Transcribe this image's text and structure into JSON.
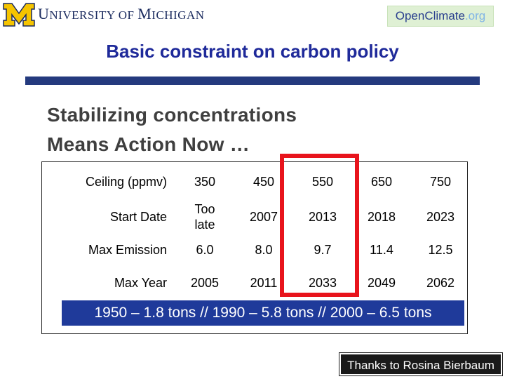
{
  "header": {
    "logo_letter": "M",
    "university": {
      "initial": "U",
      "rest": "NIVERSITY OF ",
      "m": "M",
      "tail": "ICHIGAN"
    },
    "partner": {
      "open": "Open",
      "climate": "Climate",
      "org": ".org"
    },
    "colors": {
      "maize": "#f5c400",
      "blue": "#1a2a5e"
    }
  },
  "slide": {
    "title": "Basic constraint on carbon policy",
    "subtitle_line1": "Stabilizing concentrations",
    "subtitle_line2": "Means Action Now …"
  },
  "table": {
    "header": {
      "label": "Ceiling (ppmv)",
      "values": [
        "350",
        "450",
        "550",
        "650",
        "750"
      ]
    },
    "rows": [
      {
        "label": "Start Date",
        "values": [
          "Too late",
          "2007",
          "2013",
          "2018",
          "2023"
        ]
      },
      {
        "label": "Max Emission",
        "values": [
          "6.0",
          "8.0",
          "9.7",
          "11.4",
          "12.5"
        ]
      },
      {
        "label": "Max Year",
        "values": [
          "2005",
          "2011",
          "2033",
          "2049",
          "2062"
        ]
      }
    ],
    "highlight_color": "#e8141c"
  },
  "banner": "1950 – 1.8 tons // 1990 – 5.8 tons // 2000 – 6.5 tons",
  "credit": "Thanks to Rosina Bierbaum"
}
